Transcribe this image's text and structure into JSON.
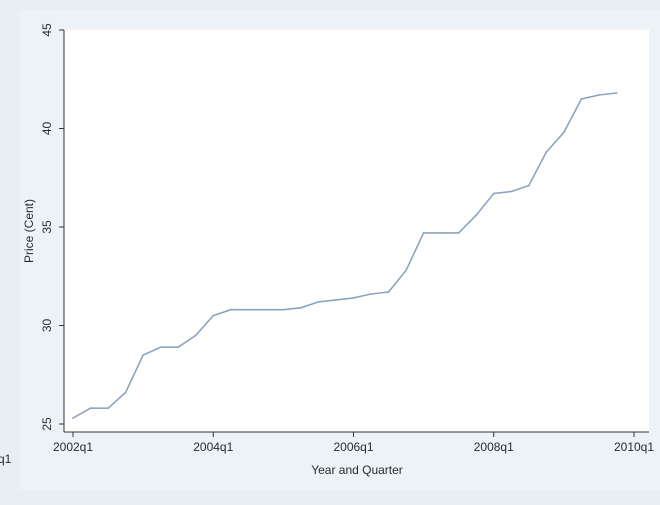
{
  "stray_edge_label": "q1",
  "chart_data": {
    "type": "line",
    "title": "",
    "xlabel": "Year and Quarter",
    "ylabel": "Price (Cent)",
    "x_ticks": [
      "2002q1",
      "2004q1",
      "2006q1",
      "2008q1",
      "2010q1"
    ],
    "y_ticks": [
      25,
      30,
      35,
      40,
      45
    ],
    "ylim": [
      25,
      45
    ],
    "xlim": [
      "2002q1",
      "2010q1"
    ],
    "grid": false,
    "line_color": "#8ea4bd",
    "series": [
      {
        "x": [
          "2002q1",
          "2002q2",
          "2002q3",
          "2002q4",
          "2003q1",
          "2003q2",
          "2003q3",
          "2003q4",
          "2004q1",
          "2004q2",
          "2004q3",
          "2004q4",
          "2005q1",
          "2005q2",
          "2005q3",
          "2005q4",
          "2006q1",
          "2006q2",
          "2006q3",
          "2006q4",
          "2007q1",
          "2007q2",
          "2007q3",
          "2007q4",
          "2008q1",
          "2008q2",
          "2008q3",
          "2008q4",
          "2009q1",
          "2009q2",
          "2009q3",
          "2009q4"
        ],
        "values": [
          25.3,
          25.8,
          25.8,
          26.6,
          28.5,
          28.9,
          28.9,
          29.5,
          30.5,
          30.8,
          30.8,
          30.8,
          30.8,
          30.9,
          31.2,
          31.3,
          31.4,
          31.6,
          31.7,
          32.8,
          34.7,
          34.7,
          34.7,
          35.6,
          36.7,
          36.8,
          37.1,
          38.8,
          39.8,
          41.5,
          41.7,
          41.8
        ]
      }
    ]
  }
}
